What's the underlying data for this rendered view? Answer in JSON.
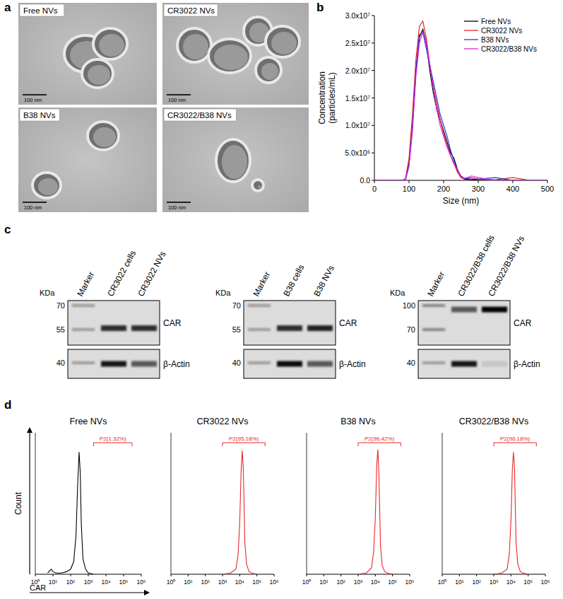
{
  "panels": [
    "a",
    "b",
    "c",
    "d"
  ],
  "tem": {
    "images": [
      {
        "label": "Free NVs",
        "scale_bar": "100 nm"
      },
      {
        "label": "CR3022 NVs",
        "scale_bar": "100 nm"
      },
      {
        "label": "B38 NVs",
        "scale_bar": "100 nm"
      },
      {
        "label": "CR3022/B38 NVs",
        "scale_bar": "100 nm"
      }
    ]
  },
  "chart_data": [
    {
      "type": "line",
      "x": [
        0,
        80,
        90,
        100,
        110,
        120,
        130,
        140,
        150,
        160,
        170,
        180,
        190,
        200,
        210,
        220,
        230,
        240,
        250,
        260,
        280,
        300,
        350,
        400,
        450,
        500
      ],
      "series": [
        {
          "name": "Free NVs",
          "color": "#000000",
          "values": [
            0,
            0,
            200000,
            3000000,
            10000000,
            20000000,
            26000000,
            27500000,
            25000000,
            20000000,
            16000000,
            13000000,
            11000000,
            9000000,
            7000000,
            5000000,
            4000000,
            2000000,
            600000,
            200000,
            100000,
            0,
            0,
            0,
            0,
            0
          ]
        },
        {
          "name": "CR3022 NVs",
          "color": "#e8262a",
          "values": [
            0,
            0,
            300000,
            4000000,
            12000000,
            22000000,
            28000000,
            29000000,
            26000000,
            21000000,
            17000000,
            14000000,
            11000000,
            8500000,
            6500000,
            4500000,
            3000000,
            1500000,
            500000,
            300000,
            500000,
            200000,
            100000,
            500000,
            0,
            0
          ]
        },
        {
          "name": "B38 NVs",
          "color": "#2233dd",
          "values": [
            0,
            0,
            200000,
            3000000,
            10000000,
            20000000,
            26500000,
            27000000,
            24000000,
            21000000,
            18000000,
            15000000,
            12000000,
            10000000,
            8000000,
            5500000,
            3500000,
            1800000,
            800000,
            400000,
            200000,
            200000,
            500000,
            0,
            0,
            0
          ]
        },
        {
          "name": "CR3022/B38 NVs",
          "color": "#dd22dd",
          "values": [
            0,
            0,
            100000,
            2500000,
            9000000,
            19000000,
            25000000,
            27000000,
            25000000,
            21000000,
            17000000,
            13000000,
            10000000,
            8000000,
            6000000,
            4500000,
            3000000,
            2000000,
            800000,
            300000,
            800000,
            500000,
            0,
            0,
            0,
            0
          ]
        }
      ],
      "xlim": [
        0,
        500
      ],
      "xticks": [
        0,
        100,
        200,
        300,
        400,
        500
      ],
      "ylim": [
        0,
        30000000
      ],
      "yticks": [
        {
          "value": 0,
          "label": "0.0"
        },
        {
          "value": 5000000,
          "label": "5.0x10⁶"
        },
        {
          "value": 10000000,
          "label": "1.0x10⁷"
        },
        {
          "value": 15000000,
          "label": "1.5x10⁷"
        },
        {
          "value": 20000000,
          "label": "2.0x10⁷"
        },
        {
          "value": 25000000,
          "label": "2.5x10⁷"
        },
        {
          "value": 30000000,
          "label": "3.0x10⁷"
        }
      ],
      "x_label": "Size (nm)",
      "y_label": [
        "Concentration",
        "(particles/mL)"
      ],
      "legend": "top-right"
    },
    {
      "type": "line",
      "title": "Free NVs",
      "color": "#000000",
      "log": "x",
      "tick_labels": "x",
      "x": [
        5,
        8,
        10,
        15,
        30,
        60,
        100,
        150,
        200,
        250,
        300,
        350,
        400,
        500,
        700,
        1000,
        2000
      ],
      "values": [
        1,
        4,
        2,
        1,
        1,
        2,
        4,
        10,
        30,
        70,
        96,
        80,
        40,
        12,
        4,
        1,
        0
      ],
      "xlim": [
        1,
        1000000
      ],
      "xticks": [
        {
          "value": 1,
          "label": "10⁰"
        },
        {
          "value": 10,
          "label": "10¹"
        },
        {
          "value": 100,
          "label": "10²"
        },
        {
          "value": 1000,
          "label": "10³"
        },
        {
          "value": 10000,
          "label": "10⁴"
        },
        {
          "value": 100000,
          "label": "10⁵"
        },
        {
          "value": 1000000,
          "label": "10⁶"
        }
      ],
      "ylim": [
        0,
        100
      ],
      "gate": {
        "label": "P2(1.32%)",
        "from": 2000,
        "to": 300000
      },
      "x_label": "CAR",
      "y_label": "Count"
    },
    {
      "type": "line",
      "title": "CR3022 NVs",
      "color": "#e8262a",
      "log": "x",
      "tick_labels": "x",
      "x": [
        1000,
        3000,
        6000,
        8000,
        10000,
        12000,
        14000,
        16000,
        18000,
        20000,
        25000,
        35000,
        50000,
        100000
      ],
      "values": [
        0,
        1,
        4,
        15,
        40,
        80,
        97,
        85,
        55,
        25,
        8,
        2,
        1,
        0
      ],
      "xlim": [
        1,
        1000000
      ],
      "xticks": [
        {
          "value": 1,
          "label": "10⁰"
        },
        {
          "value": 10,
          "label": "10¹"
        },
        {
          "value": 100,
          "label": "10²"
        },
        {
          "value": 1000,
          "label": "10³"
        },
        {
          "value": 10000,
          "label": "10⁴"
        },
        {
          "value": 100000,
          "label": "10⁵"
        },
        {
          "value": 1000000,
          "label": "10⁶"
        }
      ],
      "ylim": [
        0,
        100
      ],
      "gate": {
        "label": "P2(95.18%)",
        "from": 1000,
        "to": 300000
      }
    },
    {
      "type": "line",
      "title": "B38 NVs",
      "color": "#e8262a",
      "log": "x",
      "tick_labels": "x",
      "x": [
        1000,
        3000,
        6000,
        8000,
        10000,
        12000,
        14000,
        16000,
        18000,
        20000,
        25000,
        35000,
        50000,
        100000
      ],
      "values": [
        0,
        1,
        5,
        18,
        45,
        85,
        98,
        80,
        50,
        22,
        7,
        2,
        1,
        0
      ],
      "xlim": [
        1,
        1000000
      ],
      "xticks": [
        {
          "value": 1,
          "label": "10⁰"
        },
        {
          "value": 10,
          "label": "10¹"
        },
        {
          "value": 100,
          "label": "10²"
        },
        {
          "value": 1000,
          "label": "10³"
        },
        {
          "value": 10000,
          "label": "10⁴"
        },
        {
          "value": 100000,
          "label": "10⁵"
        },
        {
          "value": 1000000,
          "label": "10⁶"
        }
      ],
      "ylim": [
        0,
        100
      ],
      "gate": {
        "label": "P2(96.42%)",
        "from": 1000,
        "to": 300000
      }
    },
    {
      "type": "line",
      "title": "CR3022/B38 NVs",
      "color": "#e8262a",
      "log": "x",
      "tick_labels": "x",
      "x": [
        1000,
        3000,
        6000,
        8000,
        10000,
        12000,
        14000,
        16000,
        18000,
        20000,
        25000,
        35000,
        50000,
        100000
      ],
      "values": [
        0,
        1,
        4,
        16,
        42,
        82,
        96,
        84,
        52,
        24,
        8,
        2,
        1,
        0
      ],
      "xlim": [
        1,
        1000000
      ],
      "xticks": [
        {
          "value": 1,
          "label": "10⁰"
        },
        {
          "value": 10,
          "label": "10¹"
        },
        {
          "value": 100,
          "label": "10²"
        },
        {
          "value": 1000,
          "label": "10³"
        },
        {
          "value": 10000,
          "label": "10⁴"
        },
        {
          "value": 100000,
          "label": "10⁵"
        },
        {
          "value": 1000000,
          "label": "10⁶"
        }
      ],
      "ylim": [
        0,
        100
      ],
      "gate": {
        "label": "P2(96.18%)",
        "from": 1000,
        "to": 300000
      }
    }
  ],
  "blots": [
    {
      "unit": "KDa",
      "lanes": [
        "Marker",
        "CR3022 cells",
        "CR3022 NVs"
      ],
      "rows": [
        {
          "label": "CAR",
          "markers": [
            "70",
            "55"
          ],
          "band_intensity": [
            0.3,
            0.8,
            0.8
          ]
        },
        {
          "label": "β-Actin",
          "markers": [
            "40"
          ],
          "band_intensity": [
            0.3,
            0.9,
            0.6
          ]
        }
      ]
    },
    {
      "unit": "KDa",
      "lanes": [
        "Marker",
        "B38 cells",
        "B38 NVs"
      ],
      "rows": [
        {
          "label": "CAR",
          "markers": [
            "70",
            "55"
          ],
          "band_intensity": [
            0.3,
            0.8,
            0.85
          ]
        },
        {
          "label": "β-Actin",
          "markers": [
            "40"
          ],
          "band_intensity": [
            0.3,
            0.95,
            0.6
          ]
        }
      ]
    },
    {
      "unit": "KDa",
      "lanes": [
        "Marker",
        "CR3022/B38 cells",
        "CR3022/B38 NVs"
      ],
      "rows": [
        {
          "label": "CAR",
          "markers": [
            "100",
            "70"
          ],
          "band_intensity": [
            0.4,
            0.6,
            1.0
          ]
        },
        {
          "label": "β-Actin",
          "markers": [
            "40"
          ],
          "band_intensity": [
            0.3,
            0.9,
            0.1
          ]
        }
      ]
    }
  ]
}
